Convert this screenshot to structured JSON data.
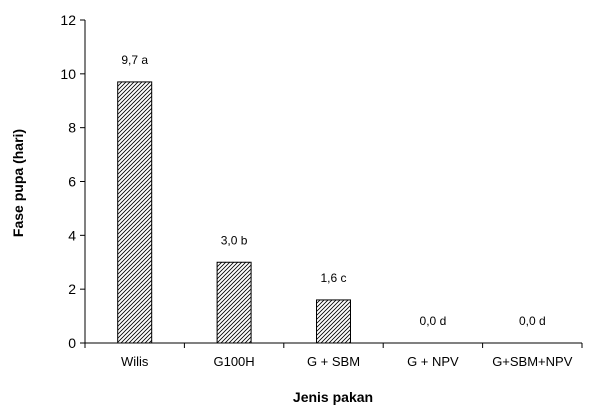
{
  "chart_data": {
    "type": "bar",
    "categories": [
      "Wilis",
      "G100H",
      "G + SBM",
      "G + NPV",
      "G+SBM+NPV"
    ],
    "values": [
      9.7,
      3.0,
      1.6,
      0.0,
      0.0
    ],
    "data_labels": [
      "9,7 a",
      "3,0 b",
      "1,6 c",
      "0,0 d",
      "0,0 d"
    ],
    "xlabel": "Jenis pakan",
    "ylabel": "Fase pupa (hari)",
    "ylim": [
      0,
      12
    ],
    "yticks": [
      0,
      2,
      4,
      6,
      8,
      10,
      12
    ],
    "grid": false,
    "legend": "none",
    "bar_fill": "diagonal-hatch",
    "colors": {
      "bar_stroke": "#000000",
      "hatch": "#000000",
      "background": "#ffffff"
    }
  }
}
